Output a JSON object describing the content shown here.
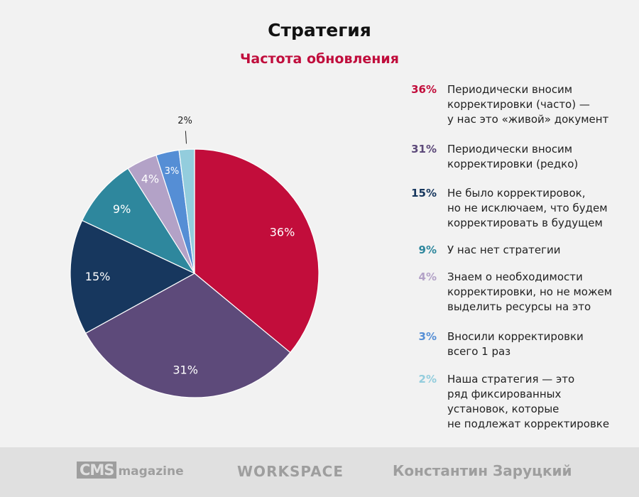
{
  "chart_data": {
    "type": "pie",
    "title": "Стратегия",
    "subtitle": "Частота обновления",
    "slices": [
      {
        "label": "36%",
        "value": 36,
        "color": "#c20d3b",
        "legend": "Периодически вносим\nкорректировки (часто) —\nу нас это «живой» документ"
      },
      {
        "label": "31%",
        "value": 31,
        "color": "#5d4a7a",
        "legend": "Периодически вносим\nкорректировки (редко)"
      },
      {
        "label": "15%",
        "value": 15,
        "color": "#17375e",
        "legend": "Не было корректировок,\nно не исключаем, что будем\nкорректировать в будущем"
      },
      {
        "label": "9%",
        "value": 9,
        "color": "#2e879d",
        "legend": "У нас нет стратегии"
      },
      {
        "label": "4%",
        "value": 4,
        "color": "#b3a2c7",
        "legend": "Знаем о необходимости\nкорректировки, но не можем\nвыделить ресурсы на это"
      },
      {
        "label": "3%",
        "value": 3,
        "color": "#558ed5",
        "legend": "Вносили корректировки\nвсего 1 раз"
      },
      {
        "label": "2%",
        "value": 2,
        "color": "#93cddd",
        "legend": "Наша стратегия — это\nряд фиксированных\nустановок, которые\nне подлежат корректировке"
      }
    ]
  },
  "footer": {
    "cms_box": "CMS",
    "cms_word": "magazine",
    "workspace": "WORKSPACE",
    "author": "Константин Заруцкий"
  }
}
